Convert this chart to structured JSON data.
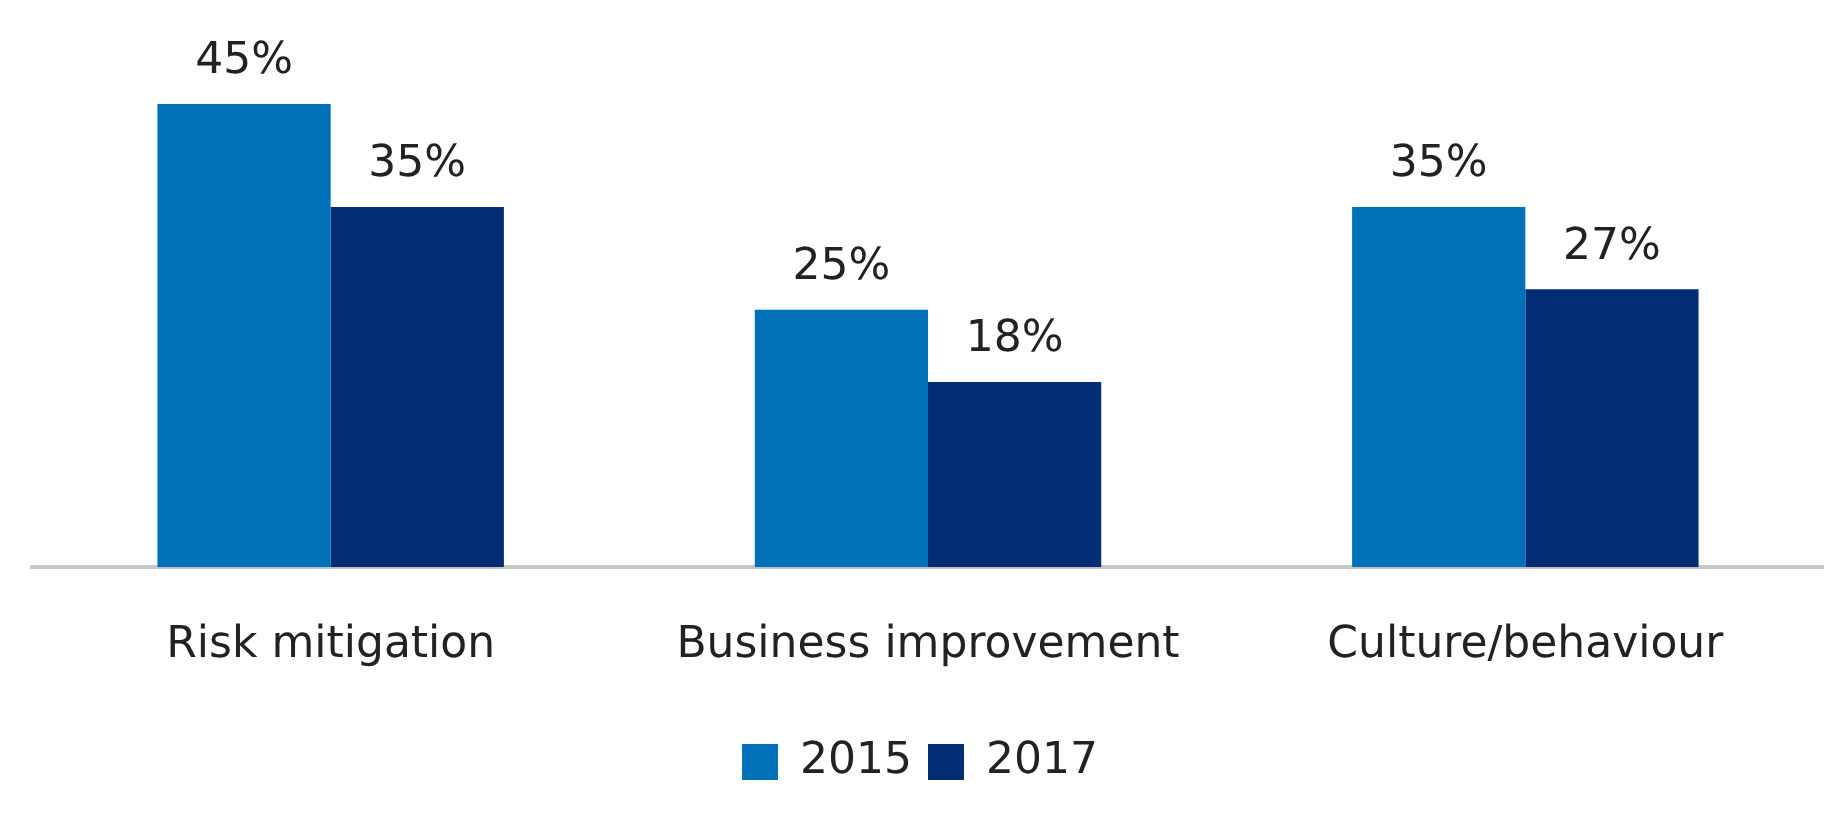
{
  "chart_data": {
    "type": "bar",
    "categories": [
      "Risk mitigation",
      "Business improvement",
      "Culture/behaviour"
    ],
    "series": [
      {
        "name": "2015",
        "color": "#0070b8",
        "values": [
          45,
          25,
          35
        ],
        "value_labels": [
          "45%",
          "25%",
          "35%"
        ]
      },
      {
        "name": "2017",
        "color": "#002d74",
        "values": [
          35,
          18,
          27
        ],
        "value_labels": [
          "35%",
          "18%",
          "27%"
        ]
      }
    ],
    "relative": false,
    "grid": false,
    "legend": "bottom"
  }
}
